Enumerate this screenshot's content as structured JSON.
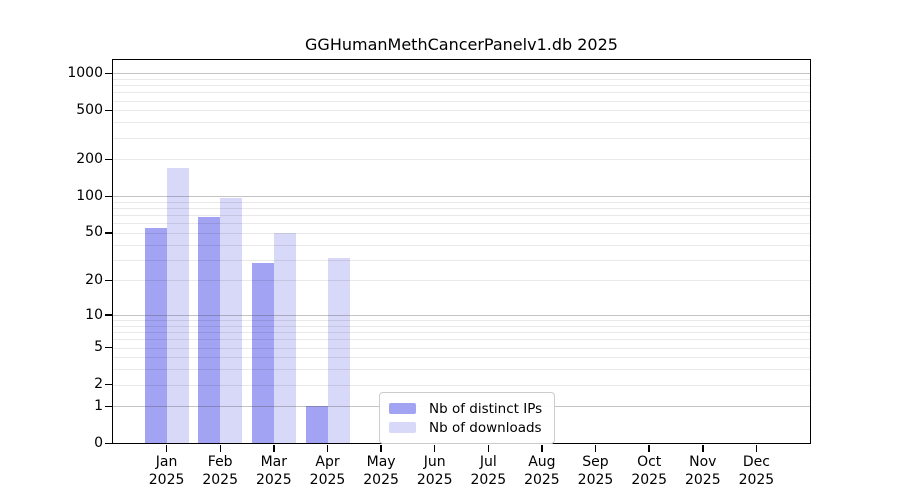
{
  "chart_data": {
    "type": "bar",
    "title": "GGHumanMethCancerPanelv1.db 2025",
    "year_label": "2025",
    "categories": [
      "Jan",
      "Feb",
      "Mar",
      "Apr",
      "May",
      "Jun",
      "Jul",
      "Aug",
      "Sep",
      "Oct",
      "Nov",
      "Dec"
    ],
    "series": [
      {
        "name": "Nb of distinct IPs",
        "color": "#a3a3f3",
        "values": [
          55,
          67,
          28,
          1,
          0,
          0,
          0,
          0,
          0,
          0,
          0,
          0
        ]
      },
      {
        "name": "Nb of downloads",
        "color": "#d8d8f8",
        "values": [
          170,
          97,
          50,
          31,
          0,
          0,
          0,
          0,
          0,
          0,
          0,
          0
        ]
      }
    ],
    "y_axis": {
      "scale": "log1p",
      "tick_values": [
        0,
        1,
        2,
        5,
        10,
        20,
        50,
        100,
        200,
        500,
        1000
      ],
      "major_gridline_values": [
        1,
        10,
        100,
        1000
      ],
      "minor_gridline_decades": [
        1,
        10,
        100
      ],
      "range_top_value": 1280
    },
    "x_axis": {
      "label_lines": 2
    },
    "legend": {
      "entries": [
        "Nb of distinct IPs",
        "Nb of downloads"
      ]
    },
    "colors": {
      "bar_distinct_ips": "#a3a3f3",
      "bar_downloads": "#d8d8f8",
      "grid_major": "#b0b0b0",
      "grid_minor": "#e8e8e8",
      "axis": "#000000",
      "background": "#ffffff"
    }
  }
}
